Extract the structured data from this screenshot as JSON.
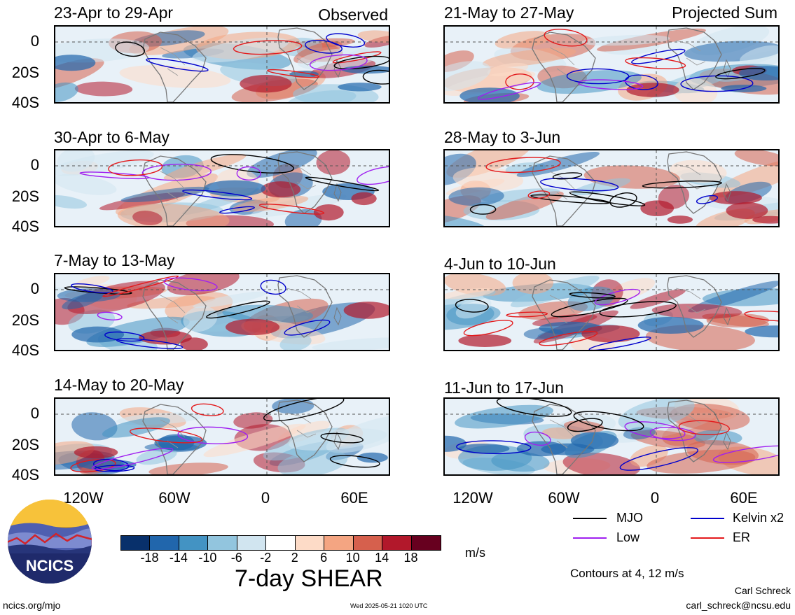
{
  "header": {
    "observed_label": "Observed",
    "projected_label": "Projected Sum"
  },
  "panels_left": [
    {
      "title": "23-Apr to 29-Apr"
    },
    {
      "title": "30-Apr to 6-May"
    },
    {
      "title": "7-May to 13-May"
    },
    {
      "title": "14-May to 20-May"
    }
  ],
  "panels_right": [
    {
      "title": "21-May to 27-May"
    },
    {
      "title": "28-May to 3-Jun"
    },
    {
      "title": "4-Jun to 10-Jun"
    },
    {
      "title": "11-Jun to 17-Jun"
    }
  ],
  "lat_labels": [
    "0",
    "20S",
    "40S"
  ],
  "lon_labels": [
    "120W",
    "60W",
    "0",
    "60E"
  ],
  "colorbar": {
    "ticks": [
      "-18",
      "-14",
      "-10",
      "-6",
      "-2",
      "2",
      "6",
      "10",
      "14",
      "18"
    ],
    "colors": [
      "#08306b",
      "#2166ac",
      "#4393c3",
      "#92c5de",
      "#d1e5f0",
      "#ffffff",
      "#fddbc7",
      "#f4a582",
      "#d6604d",
      "#b2182b",
      "#67001f"
    ],
    "units": "m/s",
    "title": "7-day SHEAR"
  },
  "legend": {
    "items": [
      {
        "label": "MJO",
        "color": "#000000"
      },
      {
        "label": "Kelvin x2",
        "color": "#0000cc"
      },
      {
        "label": "Low",
        "color": "#a020f0"
      },
      {
        "label": "ER",
        "color": "#e31a1c"
      }
    ],
    "contours_note": "Contours at 4, 12 m/s"
  },
  "footer": {
    "logo_text": "NCICS",
    "site": "ncics.org/mjo",
    "timestamp": "Wed 2025-05-21 1020 UTC",
    "author": "Carl Schreck",
    "email": "carl_schreck@ncsu.edu"
  }
}
